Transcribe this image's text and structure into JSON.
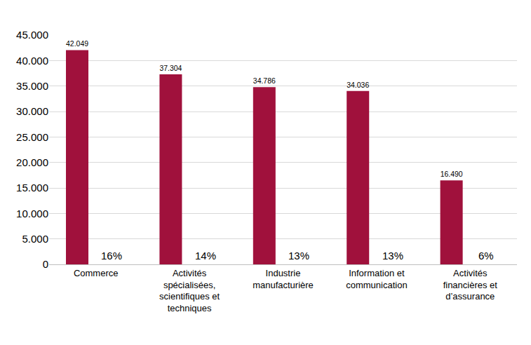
{
  "chart_data": {
    "type": "bar",
    "categories": [
      "Commerce",
      "Activités spécialisées, scientifiques et techniques",
      "Industrie manufacturière",
      "Information et communication",
      "Activités financières et d’assurance"
    ],
    "values": [
      42049,
      37304,
      34786,
      34036,
      16490
    ],
    "value_labels": [
      "42.049",
      "37.304",
      "34.786",
      "34.036",
      "16.490"
    ],
    "share_labels": [
      "16%",
      "14%",
      "13%",
      "13%",
      "6%"
    ],
    "color": "#a0113c",
    "data_labels": true,
    "ylim": [
      0,
      45000
    ],
    "yticks": [
      0,
      {
        "value": 5000,
        "label": "5.000"
      },
      {
        "value": 10000,
        "label": "10.000"
      },
      {
        "value": 15000,
        "label": "15.000"
      },
      {
        "value": 20000,
        "label": "20.000"
      },
      {
        "value": 25000,
        "label": "25.000"
      },
      {
        "value": 30000,
        "label": "30.000"
      },
      {
        "value": 35000,
        "label": "35.000"
      },
      {
        "value": 40000,
        "label": "40.000"
      },
      {
        "value": 45000,
        "label": "45.000"
      }
    ],
    "grid": true
  }
}
